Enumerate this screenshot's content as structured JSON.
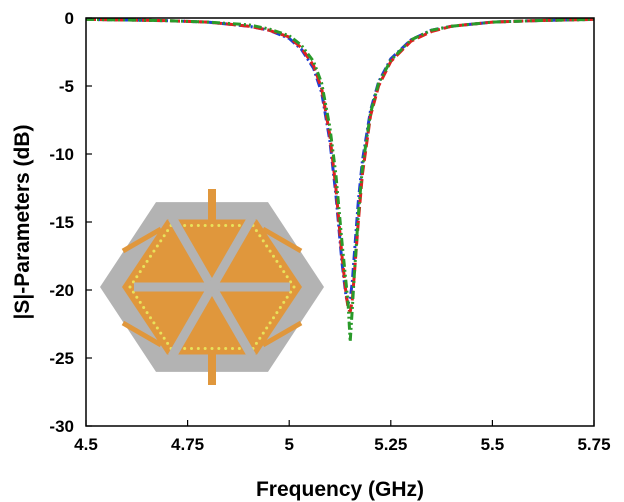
{
  "chart_data": {
    "type": "line",
    "title": "",
    "xlabel": "Frequency (GHz)",
    "ylabel": "|S|-Parameters (dB)",
    "xlim": [
      4.5,
      5.75
    ],
    "ylim": [
      -30,
      0
    ],
    "xticks": [
      4.5,
      4.75,
      5,
      5.25,
      5.5,
      5.75
    ],
    "xtick_labels": [
      "4.5",
      "4.75",
      "5",
      "5.25",
      "5.5",
      "5.75"
    ],
    "yticks": [
      0,
      -5,
      -10,
      -15,
      -20,
      -25,
      -30
    ],
    "ytick_labels": [
      "0",
      "-5",
      "-10",
      "-15",
      "-20",
      "-25",
      "-30"
    ],
    "grid": false,
    "legend": "none",
    "series": [
      {
        "color": "#1f3fd4",
        "style": "dash-dot",
        "x": [
          4.5,
          4.6,
          4.7,
          4.8,
          4.9,
          4.95,
          5.0,
          5.03,
          5.06,
          5.08,
          5.1,
          5.115,
          5.13,
          5.14,
          5.145,
          5.15,
          5.155,
          5.16,
          5.17,
          5.18,
          5.2,
          5.22,
          5.25,
          5.3,
          5.35,
          5.4,
          5.5,
          5.6,
          5.75
        ],
        "y": [
          -0.1,
          -0.15,
          -0.2,
          -0.3,
          -0.6,
          -0.9,
          -1.5,
          -2.3,
          -3.7,
          -5.5,
          -9.0,
          -13.0,
          -18.0,
          -20.5,
          -21.0,
          -20.6,
          -19.5,
          -17.5,
          -13.5,
          -10.5,
          -6.8,
          -4.7,
          -3.0,
          -1.6,
          -0.9,
          -0.6,
          -0.3,
          -0.2,
          -0.1
        ]
      },
      {
        "color": "#e02020",
        "style": "dashed",
        "x": [
          4.5,
          4.6,
          4.7,
          4.8,
          4.9,
          4.95,
          5.0,
          5.03,
          5.06,
          5.08,
          5.1,
          5.115,
          5.13,
          5.14,
          5.145,
          5.15,
          5.155,
          5.16,
          5.17,
          5.18,
          5.2,
          5.22,
          5.25,
          5.3,
          5.35,
          5.4,
          5.5,
          5.6,
          5.75
        ],
        "y": [
          -0.1,
          -0.15,
          -0.2,
          -0.3,
          -0.6,
          -0.9,
          -1.4,
          -2.2,
          -3.5,
          -5.2,
          -8.6,
          -12.5,
          -17.5,
          -20.3,
          -21.3,
          -21.6,
          -20.8,
          -19.0,
          -15.0,
          -11.5,
          -7.2,
          -5.0,
          -3.2,
          -1.7,
          -1.0,
          -0.6,
          -0.3,
          -0.2,
          -0.1
        ]
      },
      {
        "color": "#2a9a2a",
        "style": "dash-dot-dot",
        "x": [
          4.5,
          4.6,
          4.7,
          4.8,
          4.9,
          4.95,
          5.0,
          5.03,
          5.06,
          5.08,
          5.1,
          5.115,
          5.13,
          5.14,
          5.145,
          5.15,
          5.155,
          5.16,
          5.17,
          5.18,
          5.2,
          5.22,
          5.25,
          5.3,
          5.35,
          5.4,
          5.5,
          5.6,
          5.75
        ],
        "y": [
          -0.1,
          -0.15,
          -0.2,
          -0.3,
          -0.5,
          -0.8,
          -1.3,
          -2.0,
          -3.2,
          -4.8,
          -8.0,
          -11.5,
          -16.5,
          -19.5,
          -21.0,
          -23.8,
          -21.5,
          -19.0,
          -14.5,
          -11.0,
          -7.0,
          -4.8,
          -3.1,
          -1.6,
          -0.9,
          -0.6,
          -0.3,
          -0.2,
          -0.1
        ]
      }
    ]
  },
  "inset": {
    "name": "antenna-layout",
    "colors": {
      "substrate": "#b3b3b3",
      "patch": "#e0973c",
      "vias": "#e9e25a",
      "slot": "#b3b3b3"
    }
  }
}
